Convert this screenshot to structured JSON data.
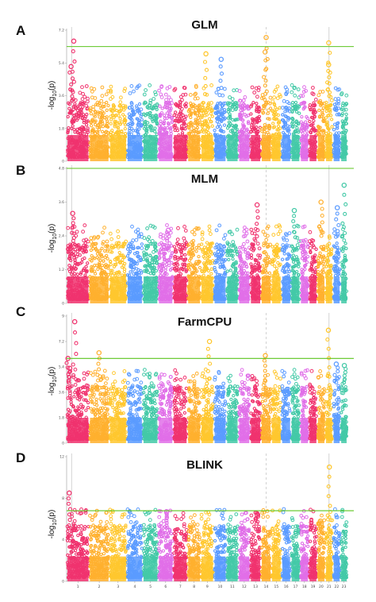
{
  "colors": {
    "chromosomes": [
      "#f0336e",
      "#ffb02e",
      "#ffc72e",
      "#5b9bff",
      "#43c9a7",
      "#e06ee8",
      "#f0336e",
      "#ffb02e",
      "#ffc72e",
      "#5b9bff",
      "#43c9a7",
      "#e06ee8",
      "#f0336e",
      "#ffb02e",
      "#ffc72e",
      "#5b9bff",
      "#43c9a7",
      "#e06ee8",
      "#f0336e",
      "#ffb02e",
      "#ffc72e",
      "#5b9bff",
      "#43c9a7",
      "#e06ee8"
    ],
    "threshold": "#5cc51e",
    "vline": "#c8c8c8"
  },
  "chart_data": [
    {
      "type": "scatter",
      "subtype": "manhattan",
      "panel_letter": "A",
      "title": "GLM",
      "ylabel_prefix": "-log",
      "ylabel_sub": "10",
      "ylabel_suffix": "(p)",
      "ylim": [
        0,
        7.2
      ],
      "yticks": [
        "7.2",
        "5.4",
        "3.6",
        "1.8",
        "0"
      ],
      "threshold": 6.3,
      "chromosomes": [
        "1",
        "2",
        "3",
        "4",
        "5",
        "6",
        "7",
        "8",
        "9",
        "10",
        "11",
        "12",
        "13",
        "14",
        "15",
        "16",
        "17",
        "18",
        "19",
        "20",
        "21",
        "22",
        "23"
      ],
      "peaks": [
        {
          "chr": "1",
          "value": 6.6
        },
        {
          "chr": "1",
          "value": 5.2
        },
        {
          "chr": "9",
          "value": 5.9
        },
        {
          "chr": "10",
          "value": 5.6
        },
        {
          "chr": "14",
          "value": 6.8
        },
        {
          "chr": "14",
          "value": 6.0
        },
        {
          "chr": "21",
          "value": 6.5
        },
        {
          "chr": "21",
          "value": 5.3
        }
      ]
    },
    {
      "type": "scatter",
      "subtype": "manhattan",
      "panel_letter": "B",
      "title": "MLM",
      "ylabel_prefix": "-log",
      "ylabel_sub": "10",
      "ylabel_suffix": "(p)",
      "ylim": [
        0,
        4.8
      ],
      "yticks": [
        "4.8",
        "3.6",
        "2.4",
        "1.2",
        "0"
      ],
      "threshold": 4.8,
      "chromosomes": [
        "1",
        "2",
        "3",
        "4",
        "5",
        "6",
        "7",
        "8",
        "9",
        "10",
        "11",
        "12",
        "13",
        "14",
        "15",
        "16",
        "17",
        "18",
        "19",
        "20",
        "21",
        "22",
        "23"
      ],
      "peaks": [
        {
          "chr": "1",
          "value": 3.2
        },
        {
          "chr": "6",
          "value": 2.6
        },
        {
          "chr": "13",
          "value": 3.5
        },
        {
          "chr": "17",
          "value": 3.3
        },
        {
          "chr": "20",
          "value": 3.6
        },
        {
          "chr": "22",
          "value": 3.4
        },
        {
          "chr": "23",
          "value": 4.2
        }
      ]
    },
    {
      "type": "scatter",
      "subtype": "manhattan",
      "panel_letter": "C",
      "title": "FarmCPU",
      "ylabel_prefix": "-log",
      "ylabel_sub": "10",
      "ylabel_suffix": "(p)",
      "ylim": [
        0,
        9
      ],
      "yticks": [
        "9",
        "7.2",
        "5.4",
        "3.6",
        "1.8",
        "0"
      ],
      "threshold": 6.0,
      "chromosomes": [
        "1",
        "2",
        "3",
        "4",
        "5",
        "6",
        "7",
        "8",
        "9",
        "10",
        "11",
        "12",
        "13",
        "14",
        "15",
        "16",
        "17",
        "18",
        "19",
        "20",
        "21",
        "22",
        "23"
      ],
      "peaks": [
        {
          "chr": "1",
          "value": 8.6
        },
        {
          "chr": "1",
          "value": 6.0
        },
        {
          "chr": "1",
          "value": 5.3
        },
        {
          "chr": "2",
          "value": 6.4
        },
        {
          "chr": "9",
          "value": 7.2
        },
        {
          "chr": "14",
          "value": 6.2
        },
        {
          "chr": "21",
          "value": 8.0
        },
        {
          "chr": "22",
          "value": 5.6
        },
        {
          "chr": "23",
          "value": 5.5
        }
      ]
    },
    {
      "type": "scatter",
      "subtype": "manhattan",
      "panel_letter": "D",
      "title": "BLINK",
      "ylabel_prefix": "-log",
      "ylabel_sub": "10",
      "ylabel_suffix": "(p)",
      "ylim": [
        0,
        12
      ],
      "yticks": [
        "12",
        "8",
        "4",
        "0"
      ],
      "threshold": 6.8,
      "chromosomes": [
        "1",
        "2",
        "3",
        "4",
        "5",
        "6",
        "7",
        "8",
        "9",
        "10",
        "11",
        "12",
        "13",
        "14",
        "15",
        "16",
        "17",
        "18",
        "19",
        "20",
        "21",
        "22",
        "23"
      ],
      "peaks": [
        {
          "chr": "1",
          "value": 8.5
        },
        {
          "chr": "6",
          "value": 6.7
        },
        {
          "chr": "13",
          "value": 6.4
        },
        {
          "chr": "20",
          "value": 5.8
        },
        {
          "chr": "21",
          "value": 11.0
        }
      ]
    }
  ]
}
